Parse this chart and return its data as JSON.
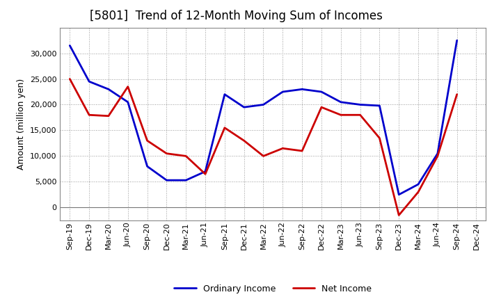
{
  "title": "[5801]  Trend of 12-Month Moving Sum of Incomes",
  "ylabel": "Amount (million yen)",
  "x_labels": [
    "Sep-19",
    "Dec-19",
    "Mar-20",
    "Jun-20",
    "Sep-20",
    "Dec-20",
    "Mar-21",
    "Jun-21",
    "Sep-21",
    "Dec-21",
    "Mar-22",
    "Jun-22",
    "Sep-22",
    "Dec-22",
    "Mar-23",
    "Jun-23",
    "Sep-23",
    "Dec-23",
    "Mar-24",
    "Jun-24",
    "Sep-24",
    "Dec-24"
  ],
  "ordinary_income": [
    31500,
    24500,
    23000,
    20500,
    8000,
    5300,
    5300,
    7000,
    22000,
    19500,
    20000,
    22500,
    23000,
    22500,
    20500,
    20000,
    19800,
    2500,
    4500,
    10500,
    32500,
    null
  ],
  "net_income": [
    25000,
    18000,
    17800,
    23500,
    13000,
    10500,
    10000,
    6500,
    15500,
    13000,
    10000,
    11500,
    11000,
    19500,
    18000,
    18000,
    13500,
    -1500,
    3000,
    10000,
    22000,
    null
  ],
  "ordinary_color": "#0000cc",
  "net_color": "#cc0000",
  "ylim": [
    -2500,
    35000
  ],
  "yticks": [
    0,
    5000,
    10000,
    15000,
    20000,
    25000,
    30000
  ],
  "background_color": "#ffffff",
  "grid_color": "#999999",
  "title_fontsize": 12,
  "axis_label_fontsize": 9,
  "tick_fontsize": 8,
  "legend_fontsize": 9,
  "line_width": 2.0
}
